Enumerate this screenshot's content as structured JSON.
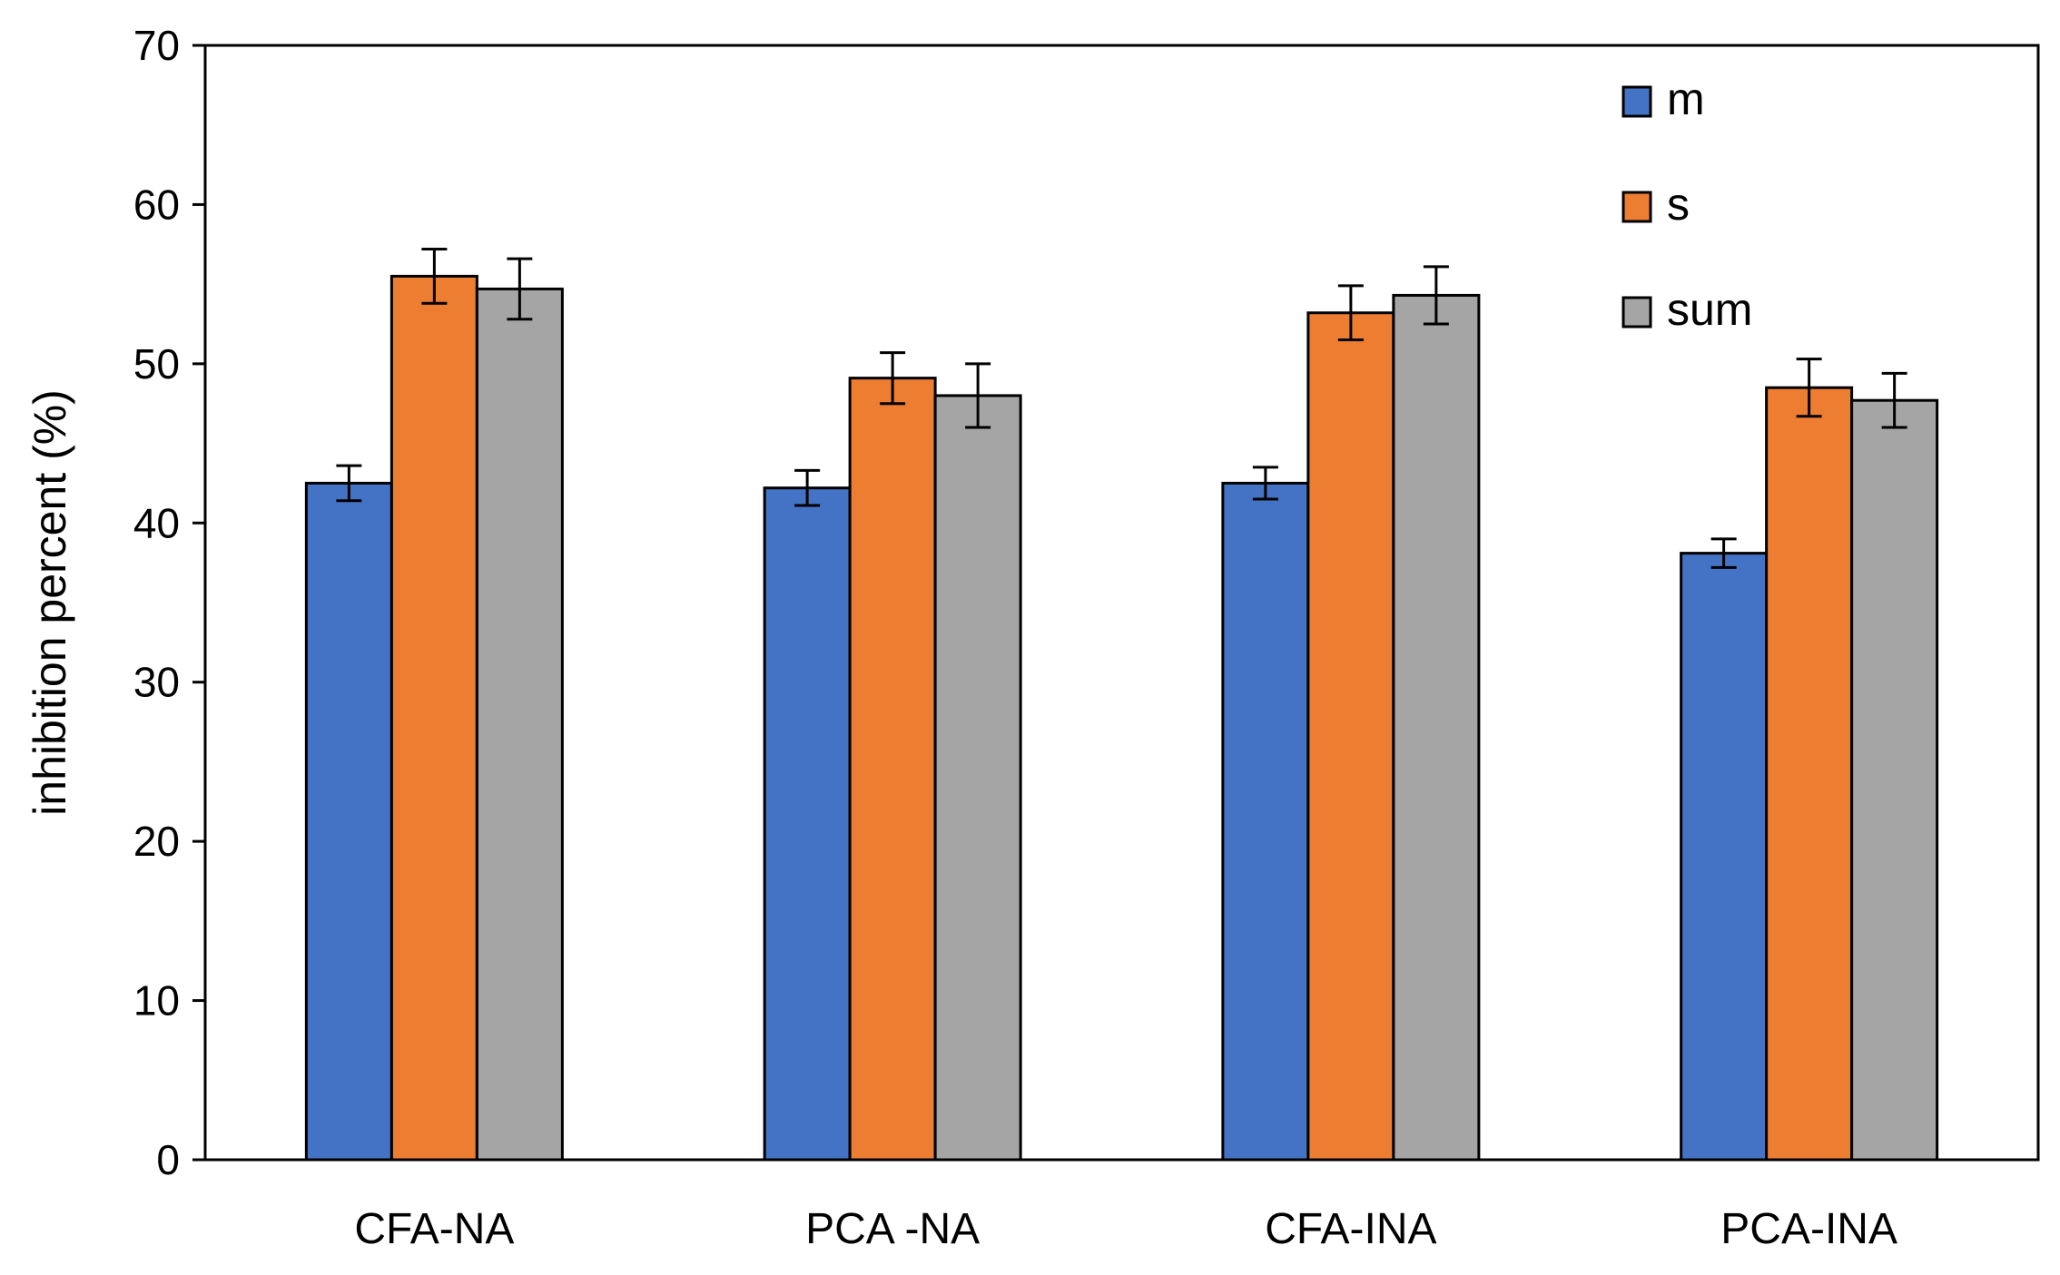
{
  "chart_data": {
    "type": "bar",
    "title": "",
    "xlabel": "",
    "ylabel": "inhibition percent (%)",
    "ylim": [
      0,
      70
    ],
    "yticks": [
      0,
      10,
      20,
      30,
      40,
      50,
      60,
      70
    ],
    "grid": false,
    "legend_position": "top-right",
    "categories": [
      "CFA-NA",
      "PCA -NA",
      "CFA-INA",
      "PCA-INA"
    ],
    "series": [
      {
        "name": "m",
        "color": "#4472C4",
        "values": [
          42.5,
          42.2,
          42.5,
          38.1
        ],
        "errors": [
          1.1,
          1.1,
          1.0,
          0.9
        ]
      },
      {
        "name": "s",
        "color": "#ED7D31",
        "values": [
          55.5,
          49.1,
          53.2,
          48.5
        ],
        "errors": [
          1.7,
          1.6,
          1.7,
          1.8
        ]
      },
      {
        "name": "sum",
        "color": "#A5A5A5",
        "values": [
          54.7,
          48.0,
          54.3,
          47.7
        ],
        "errors": [
          1.9,
          2.0,
          1.8,
          1.7
        ]
      }
    ]
  }
}
